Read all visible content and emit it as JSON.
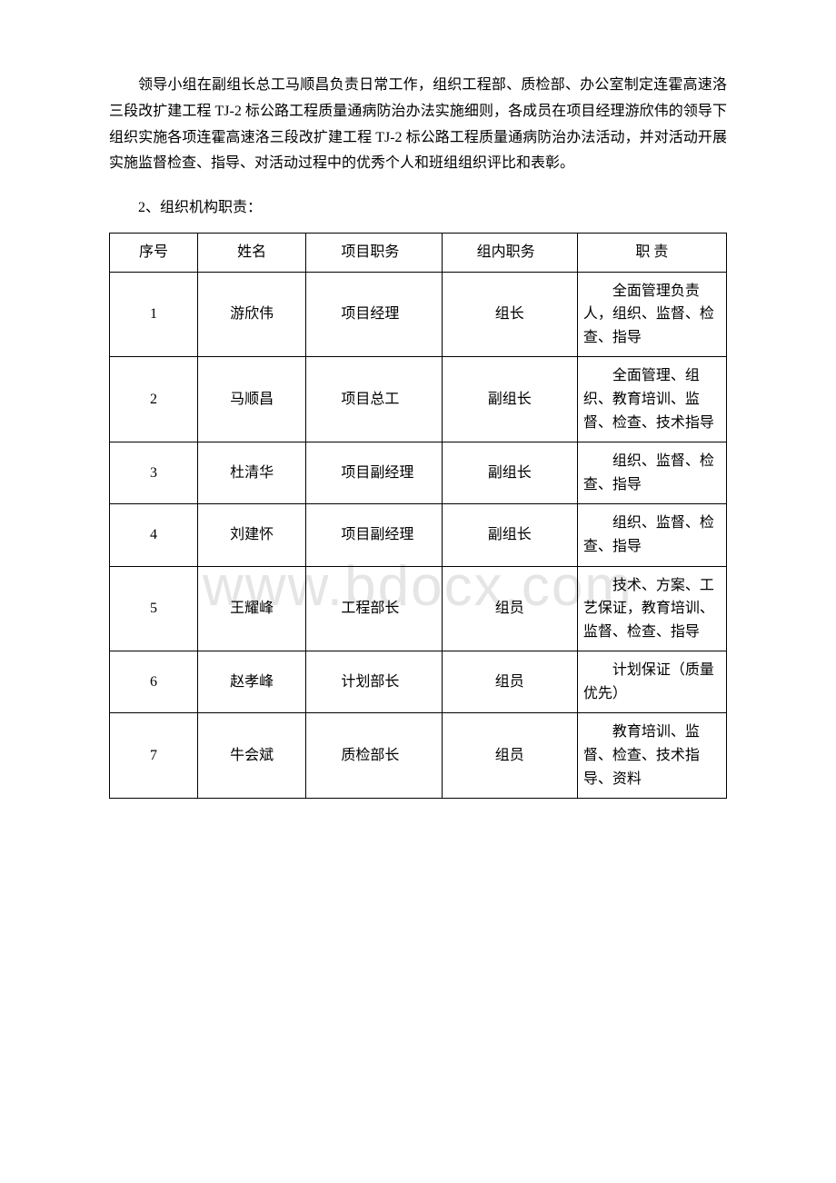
{
  "watermark": "www.bdocx.com",
  "paragraph1": "领导小组在副组长总工马顺昌负责日常工作，组织工程部、质检部、办公室制定连霍高速洛三段改扩建工程 TJ-2 标公路工程质量通病防治办法实施细则，各成员在项目经理游欣伟的领导下组织实施各项连霍高速洛三段改扩建工程 TJ-2 标公路工程质量通病防治办法活动，并对活动开展实施监督检查、指导、对活动过程中的优秀个人和班组组织评比和表彰。",
  "sectionTitle": "2、组织机构职责：",
  "table": {
    "headers": {
      "seq": "序号",
      "name": "姓名",
      "position": "项目职务",
      "group": "组内职务",
      "duty": "职 责"
    },
    "rows": [
      {
        "seq": "1",
        "name": "游欣伟",
        "position": "项目经理",
        "group": "组长",
        "duty": "全面管理负责人，组织、监督、检查、指导"
      },
      {
        "seq": "2",
        "name": "马顺昌",
        "position": "项目总工",
        "group": "副组长",
        "duty": "全面管理、组织、教育培训、监督、检查、技术指导"
      },
      {
        "seq": "3",
        "name": "杜清华",
        "position": "项目副经理",
        "group": "副组长",
        "duty": "组织、监督、检查、指导"
      },
      {
        "seq": "4",
        "name": "刘建怀",
        "position": "项目副经理",
        "group": "副组长",
        "duty": "组织、监督、检查、指导"
      },
      {
        "seq": "5",
        "name": "王耀峰",
        "position": "工程部长",
        "group": "组员",
        "duty": "技术、方案、工艺保证，教育培训、监督、检查、指导"
      },
      {
        "seq": "6",
        "name": "赵孝峰",
        "position": "计划部长",
        "group": "组员",
        "duty": "计划保证（质量优先）"
      },
      {
        "seq": "7",
        "name": "牛会斌",
        "position": "质检部长",
        "group": "组员",
        "duty": "教育培训、监督、检查、技术指导、资料"
      }
    ]
  }
}
